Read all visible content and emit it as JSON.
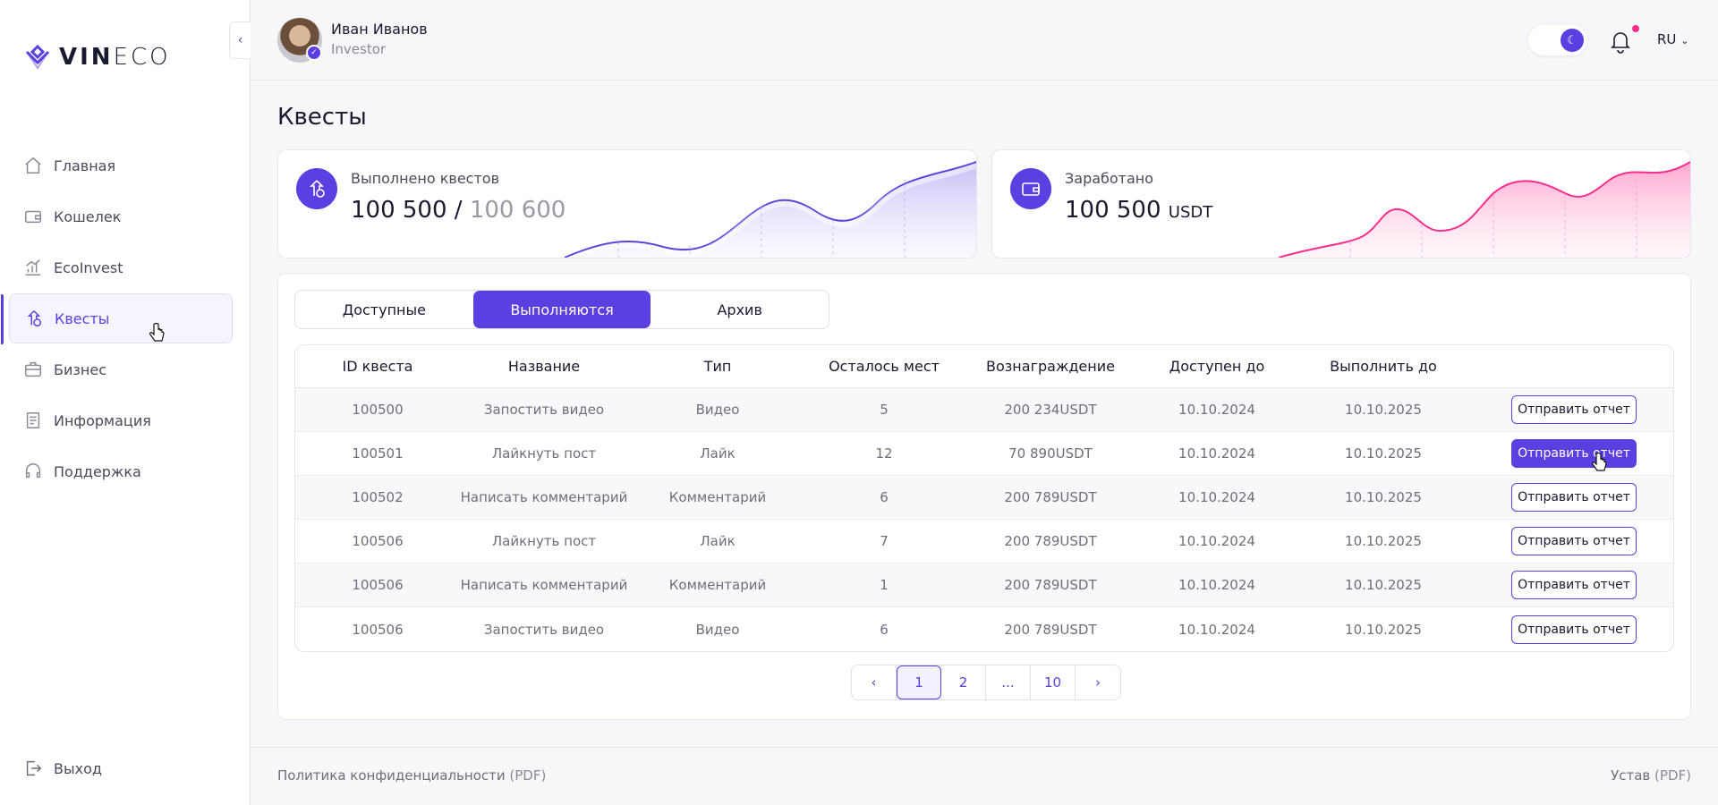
{
  "brand": {
    "logo_bold": "VIN",
    "logo_light": "ECO"
  },
  "sidebar": {
    "items": [
      {
        "label": "Главная",
        "icon": "home-icon"
      },
      {
        "label": "Кошелек",
        "icon": "wallet-icon"
      },
      {
        "label": "EcoInvest",
        "icon": "chart-icon"
      },
      {
        "label": "Квесты",
        "icon": "quest-icon",
        "active": true
      },
      {
        "label": "Бизнес",
        "icon": "briefcase-icon"
      },
      {
        "label": "Информация",
        "icon": "document-icon"
      },
      {
        "label": "Поддержка",
        "icon": "headset-icon"
      }
    ],
    "logout": "Выход"
  },
  "header": {
    "user_name": "Иван Иванов",
    "user_role": "Investor",
    "lang": "RU"
  },
  "page": {
    "title": "Квесты"
  },
  "stats": {
    "quests_label": "Выполнено квестов",
    "quests_done": "100 500",
    "quests_sep": " / ",
    "quests_total": "100 600",
    "earned_label": "Заработано",
    "earned_value": "100 500",
    "earned_unit": "USDT"
  },
  "tabs": [
    "Доступные",
    "Выполняются",
    "Архив"
  ],
  "table": {
    "headers": [
      "ID квеста",
      "Название",
      "Тип",
      "Осталось мест",
      "Вознаграждение",
      "Доступен до",
      "Выполнить до",
      ""
    ],
    "action_label": "Отправить отчет",
    "rows": [
      [
        "100500",
        "Запостить видео",
        "Видео",
        "5",
        "200 234USDT",
        "10.10.2024",
        "10.10.2025"
      ],
      [
        "100501",
        "Лайкнуть пост",
        "Лайк",
        "12",
        "70 890USDT",
        "10.10.2024",
        "10.10.2025"
      ],
      [
        "100502",
        "Написать комментарий",
        "Комментарий",
        "6",
        "200 789USDT",
        "10.10.2024",
        "10.10.2025"
      ],
      [
        "100506",
        "Лайкнуть пост",
        "Лайк",
        "7",
        "200 789USDT",
        "10.10.2024",
        "10.10.2025"
      ],
      [
        "100506",
        "Написать комментарий",
        "Комментарий",
        "1",
        "200 789USDT",
        "10.10.2024",
        "10.10.2025"
      ],
      [
        "100506",
        "Запостить видео",
        "Видео",
        "6",
        "200 789USDT",
        "10.10.2024",
        "10.10.2025"
      ]
    ]
  },
  "pagination": {
    "pages": [
      "1",
      "2",
      "...",
      "10"
    ],
    "current": "1"
  },
  "footer": {
    "privacy": "Политика конфиденциальности",
    "charter": "Устав",
    "pdf": "PDF"
  },
  "colors": {
    "accent": "#5b3fe0",
    "pink": "#ff2d8a"
  }
}
